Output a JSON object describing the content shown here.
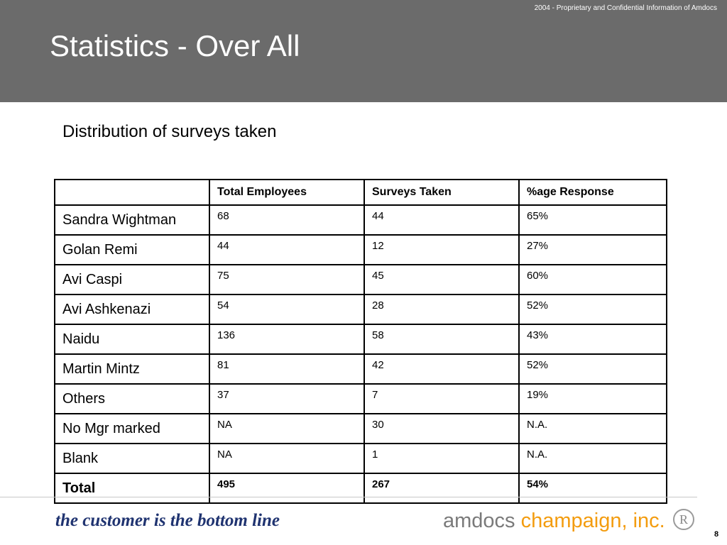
{
  "header": {
    "confidential": "2004 - Proprietary and Confidential Information of Amdocs",
    "title": "Statistics - Over All"
  },
  "subtitle": "Distribution of surveys taken",
  "table": {
    "columns": [
      "",
      "Total Employees",
      "Surveys Taken",
      "%age Response"
    ],
    "rows": [
      {
        "name": "Sandra Wightman",
        "total": "68",
        "taken": "44",
        "response": "65%"
      },
      {
        "name": "Golan Remi",
        "total": "44",
        "taken": "12",
        "response": "27%"
      },
      {
        "name": "Avi Caspi",
        "total": "75",
        "taken": "45",
        "response": "60%"
      },
      {
        "name": "Avi Ashkenazi",
        "total": "54",
        "taken": "28",
        "response": "52%"
      },
      {
        "name": "Naidu",
        "total": "136",
        "taken": "58",
        "response": "43%"
      },
      {
        "name": "Martin Mintz",
        "total": "81",
        "taken": "42",
        "response": "52%"
      },
      {
        "name": "Others",
        "total": "37",
        "taken": "7",
        "response": "19%"
      },
      {
        "name": "No Mgr marked",
        "total": "NA",
        "taken": "30",
        "response": "N.A."
      },
      {
        "name": "Blank",
        "total": "NA",
        "taken": "1",
        "response": "N.A."
      }
    ],
    "total_row": {
      "name": "Total",
      "total": "495",
      "taken": "267",
      "response": "54%"
    }
  },
  "footer": {
    "tagline": "the customer is the bottom line",
    "logo_part1": "amdocs",
    "logo_part2": "champaign, inc.",
    "seal_letter": "R",
    "page_number": "8"
  },
  "colors": {
    "header_bg": "#6b6b6b",
    "tagline": "#1f3370",
    "logo_gray": "#7a7a7a",
    "logo_orange": "#f39c0f"
  }
}
